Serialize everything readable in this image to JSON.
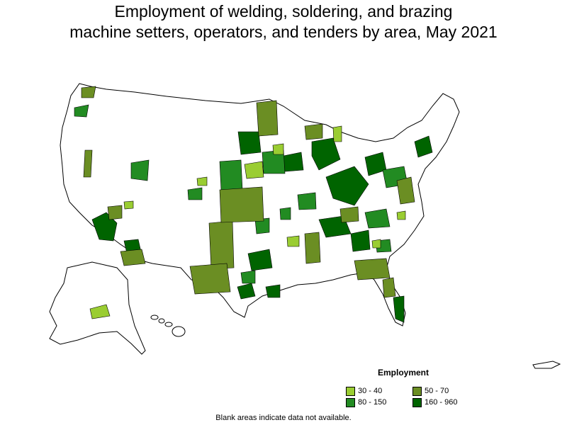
{
  "title": {
    "line1": "Employment of welding, soldering, and brazing",
    "line2": "machine setters, operators, and tenders by area, May 2021"
  },
  "legend": {
    "title": "Employment",
    "items": [
      {
        "label": "30 - 40",
        "color": "#9acd32"
      },
      {
        "label": "50 - 70",
        "color": "#6b8e23"
      },
      {
        "label": "80 - 150",
        "color": "#228b22"
      },
      {
        "label": "160 - 960",
        "color": "#006400"
      }
    ]
  },
  "note": "Blank areas indicate data not available."
}
